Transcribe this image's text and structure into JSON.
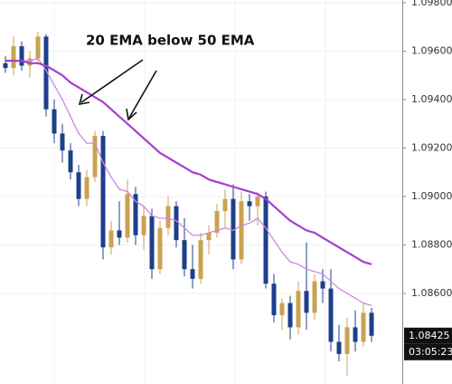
{
  "chart_data": {
    "type": "candlestick",
    "annotation": "20 EMA below 50 EMA",
    "price_label": "1.08425",
    "timer": "03:05:23",
    "ylim": [
      1.08226,
      1.09811
    ],
    "yticks": [
      {
        "value": 1.098,
        "label": "1.09800"
      },
      {
        "value": 1.096,
        "label": "1.09600"
      },
      {
        "value": 1.094,
        "label": "1.09400"
      },
      {
        "value": 1.092,
        "label": "1.09200"
      },
      {
        "value": 1.09,
        "label": "1.09000"
      },
      {
        "value": 1.088,
        "label": "1.08800"
      },
      {
        "value": 1.086,
        "label": "1.08600"
      }
    ],
    "grid": true,
    "up_color": "#c9a352",
    "down_color": "#1e3f8a",
    "open": [
      1.0955,
      1.0953,
      1.0962,
      1.0954,
      1.0957,
      1.0966,
      1.0936,
      1.0926,
      1.0919,
      1.091,
      1.0899,
      1.0908,
      1.0925,
      1.0879,
      1.0886,
      1.0883,
      1.0901,
      1.0884,
      1.0892,
      1.087,
      1.0887,
      1.0896,
      1.0882,
      1.087,
      1.0866,
      1.0882,
      1.0885,
      1.0894,
      1.0899,
      1.0874,
      1.0898,
      1.0896,
      1.09,
      1.0864,
      1.0851,
      1.0856,
      1.0846,
      1.0861,
      1.0852,
      1.0865,
      1.0862,
      1.084,
      1.0835,
      1.0846,
      1.084,
      1.0852
    ],
    "high": [
      1.0958,
      1.0966,
      1.0964,
      1.096,
      1.0968,
      1.0967,
      1.094,
      1.093,
      1.0922,
      1.0913,
      1.0911,
      1.0927,
      1.0927,
      1.089,
      1.0898,
      1.0907,
      1.0904,
      1.0896,
      1.0895,
      1.089,
      1.09,
      1.0898,
      1.0891,
      1.088,
      1.0885,
      1.0888,
      1.0897,
      1.0903,
      1.0905,
      1.0902,
      1.0901,
      1.0902,
      1.0902,
      1.0868,
      1.0858,
      1.0859,
      1.0865,
      1.0881,
      1.0868,
      1.087,
      1.087,
      1.0847,
      1.085,
      1.0853,
      1.0856,
      1.0854
    ],
    "low": [
      1.0951,
      1.095,
      1.0952,
      1.0949,
      1.0955,
      1.0933,
      1.0922,
      1.0914,
      1.0907,
      1.0896,
      1.0896,
      1.0906,
      1.0874,
      1.0876,
      1.088,
      1.0881,
      1.088,
      1.0878,
      1.0866,
      1.0868,
      1.0884,
      1.0879,
      1.0867,
      1.0862,
      1.0864,
      1.0876,
      1.0883,
      1.0887,
      1.087,
      1.0872,
      1.089,
      1.0888,
      1.0862,
      1.0848,
      1.0845,
      1.0841,
      1.0843,
      1.0845,
      1.0849,
      1.0856,
      1.0836,
      1.0832,
      1.0826,
      1.0836,
      1.0838,
      1.084
    ],
    "close": [
      1.0953,
      1.0962,
      1.0954,
      1.0957,
      1.0966,
      1.0936,
      1.0926,
      1.0919,
      1.091,
      1.0899,
      1.0908,
      1.0925,
      1.0879,
      1.0886,
      1.0883,
      1.0901,
      1.0884,
      1.0892,
      1.087,
      1.0887,
      1.0896,
      1.0882,
      1.087,
      1.0866,
      1.0882,
      1.0885,
      1.0894,
      1.0899,
      1.0874,
      1.0898,
      1.0896,
      1.09,
      1.0864,
      1.0851,
      1.0856,
      1.0846,
      1.0861,
      1.0852,
      1.0865,
      1.0862,
      1.084,
      1.0835,
      1.0846,
      1.084,
      1.0852,
      1.08425
    ],
    "lines": [
      {
        "color": "#cf86e0",
        "values": [
          1.0956,
          1.0956,
          1.0956,
          1.0956,
          1.0957,
          1.0952,
          1.0946,
          1.094,
          1.0933,
          1.0926,
          1.0922,
          1.0922,
          1.0914,
          1.0908,
          1.0903,
          1.0902,
          1.0898,
          1.0896,
          1.0892,
          1.0891,
          1.0891,
          1.089,
          1.0887,
          1.0884,
          1.0884,
          1.0885,
          1.0886,
          1.0887,
          1.0886,
          1.0888,
          1.0889,
          1.0891,
          1.0887,
          1.0882,
          1.0877,
          1.0873,
          1.0872,
          1.087,
          1.0869,
          1.0868,
          1.0865,
          1.0862,
          1.086,
          1.0858,
          1.0856,
          1.0855
        ]
      },
      {
        "color": "#a63fd0",
        "values": [
          1.0956,
          1.0956,
          1.0956,
          1.0955,
          1.0955,
          1.0954,
          1.0952,
          1.095,
          1.0947,
          1.0945,
          1.0943,
          1.0941,
          1.0939,
          1.0936,
          1.0933,
          1.093,
          1.0927,
          1.0924,
          1.0921,
          1.0918,
          1.0916,
          1.0914,
          1.0912,
          1.091,
          1.0909,
          1.0907,
          1.0906,
          1.0905,
          1.0904,
          1.0903,
          1.0902,
          1.0901,
          1.0899,
          1.0896,
          1.0893,
          1.089,
          1.0888,
          1.0886,
          1.0885,
          1.0883,
          1.0881,
          1.0879,
          1.0877,
          1.0875,
          1.0873,
          1.0872
        ]
      }
    ]
  }
}
